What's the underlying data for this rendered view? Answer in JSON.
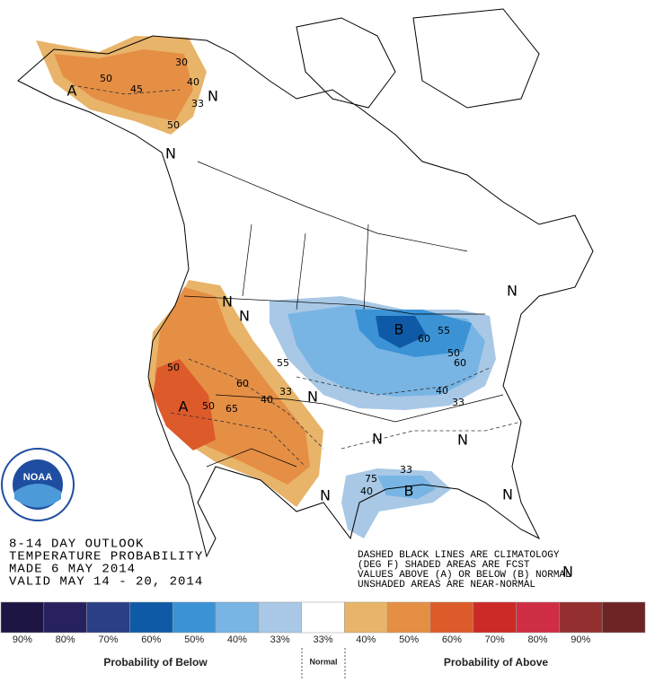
{
  "header": [
    "8-14 DAY OUTLOOK",
    "TEMPERATURE PROBABILITY",
    "MADE  6 MAY 2014",
    "VALID MAY 14 - 20, 2014"
  ],
  "notes": [
    "DASHED BLACK LINES ARE CLIMATOLOGY",
    "(DEG F) SHADED AREAS ARE FCST",
    "VALUES ABOVE (A) OR BELOW (B) NORMAL",
    "UNSHADED AREAS ARE NEAR-NORMAL"
  ],
  "logo": "NOAA",
  "map_labels": [
    "A",
    "50",
    "45",
    "30",
    "40",
    "33",
    "50",
    "N",
    "N",
    "N",
    "50",
    "A",
    "50",
    "65",
    "60",
    "40",
    "33",
    "55",
    "N",
    "N",
    "B",
    "55",
    "60",
    "50",
    "60",
    "40",
    "33",
    "N",
    "N",
    "N",
    "N",
    "33",
    "40",
    "75",
    "B",
    "N",
    "N"
  ],
  "legend": {
    "items": [
      {
        "color": "#1d1645",
        "label": "90%"
      },
      {
        "color": "#27225f",
        "label": "80%"
      },
      {
        "color": "#2b3f86",
        "label": "70%"
      },
      {
        "color": "#0f5aa6",
        "label": "60%"
      },
      {
        "color": "#3b93d6",
        "label": "50%"
      },
      {
        "color": "#78b5e5",
        "label": "40%"
      },
      {
        "color": "#a8c8e6",
        "label": "33%"
      },
      {
        "color": "#ffffff",
        "label": "33%"
      },
      {
        "color": "#e8b46a",
        "label": "40%"
      },
      {
        "color": "#e58f45",
        "label": "50%"
      },
      {
        "color": "#dd5a2a",
        "label": "60%"
      },
      {
        "color": "#cc2a26",
        "label": "70%"
      },
      {
        "color": "#d02e45",
        "label": "80%"
      },
      {
        "color": "#93302f",
        "label": "90%"
      },
      {
        "color": "#6e2424",
        "label": ""
      }
    ],
    "below": "Probability of Below",
    "normal": "Normal",
    "above": "Probability of Above"
  }
}
